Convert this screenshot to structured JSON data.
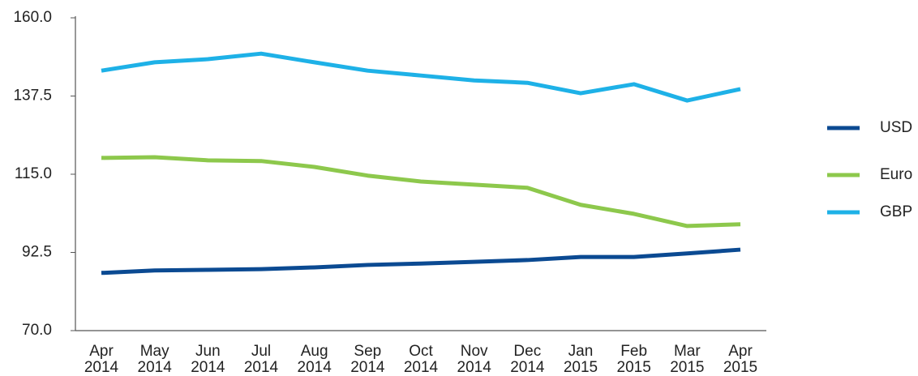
{
  "chart_data": {
    "type": "line",
    "categories": [
      "Apr 2014",
      "May 2014",
      "Jun 2014",
      "Jul 2014",
      "Aug 2014",
      "Sep 2014",
      "Oct 2014",
      "Nov 2014",
      "Dec 2014",
      "Jan 2015",
      "Feb 2015",
      "Mar 2015",
      "Apr 2015"
    ],
    "series": [
      {
        "name": "USD",
        "color": "#0b4a92",
        "values": [
          86.6,
          87.3,
          87.5,
          87.7,
          88.2,
          88.9,
          89.3,
          89.8,
          90.3,
          91.2,
          91.2,
          92.2,
          93.3
        ]
      },
      {
        "name": "Euro",
        "color": "#8dc84c",
        "values": [
          119.7,
          119.9,
          119.0,
          118.8,
          117.1,
          114.6,
          112.9,
          112.0,
          111.1,
          106.2,
          103.6,
          100.1,
          100.6
        ]
      },
      {
        "name": "GBP",
        "color": "#1eb1e7",
        "values": [
          144.8,
          147.2,
          148.1,
          149.7,
          147.2,
          144.8,
          143.4,
          142.0,
          141.3,
          138.3,
          140.9,
          136.2,
          139.5
        ]
      }
    ],
    "ylim": [
      70,
      160
    ],
    "yticks": [
      {
        "value": 70,
        "label": "70.0"
      },
      {
        "value": 92.5,
        "label": "92.5"
      },
      {
        "value": 115,
        "label": "115.0"
      },
      {
        "value": 137.5,
        "label": "137.5"
      },
      {
        "value": 160,
        "label": "160.0"
      }
    ],
    "legend": "right"
  }
}
